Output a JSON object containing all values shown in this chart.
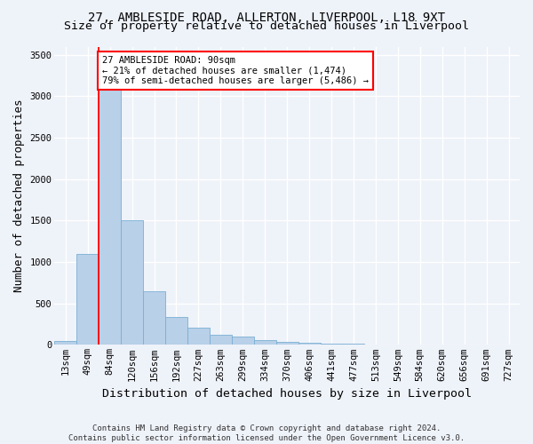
{
  "title1": "27, AMBLESIDE ROAD, ALLERTON, LIVERPOOL, L18 9XT",
  "title2": "Size of property relative to detached houses in Liverpool",
  "xlabel": "Distribution of detached houses by size in Liverpool",
  "ylabel": "Number of detached properties",
  "footnote": "Contains HM Land Registry data © Crown copyright and database right 2024.\nContains public sector information licensed under the Open Government Licence v3.0.",
  "categories": [
    "13sqm",
    "49sqm",
    "84sqm",
    "120sqm",
    "156sqm",
    "192sqm",
    "227sqm",
    "263sqm",
    "299sqm",
    "334sqm",
    "370sqm",
    "406sqm",
    "441sqm",
    "477sqm",
    "513sqm",
    "549sqm",
    "584sqm",
    "620sqm",
    "656sqm",
    "691sqm",
    "727sqm"
  ],
  "values": [
    50,
    1100,
    3450,
    1500,
    650,
    340,
    210,
    120,
    100,
    60,
    40,
    25,
    15,
    10,
    6,
    4,
    3,
    2,
    2,
    1,
    1
  ],
  "bar_color": "#b8d0e8",
  "bar_edge_color": "#7aafd4",
  "red_line_x": 1.5,
  "annotation_line1": "27 AMBLESIDE ROAD: 90sqm",
  "annotation_line2": "← 21% of detached houses are smaller (1,474)",
  "annotation_line3": "79% of semi-detached houses are larger (5,486) →",
  "annotation_box_color": "white",
  "annotation_box_edge_color": "red",
  "ylim": [
    0,
    3600
  ],
  "yticks": [
    0,
    500,
    1000,
    1500,
    2000,
    2500,
    3000,
    3500
  ],
  "bg_color": "#eef2f9",
  "grid_color": "white",
  "title1_fontsize": 10,
  "title2_fontsize": 9.5,
  "axis_label_fontsize": 9,
  "tick_fontsize": 7.5,
  "footnote_fontsize": 6.5,
  "annotation_fontsize": 7.5
}
